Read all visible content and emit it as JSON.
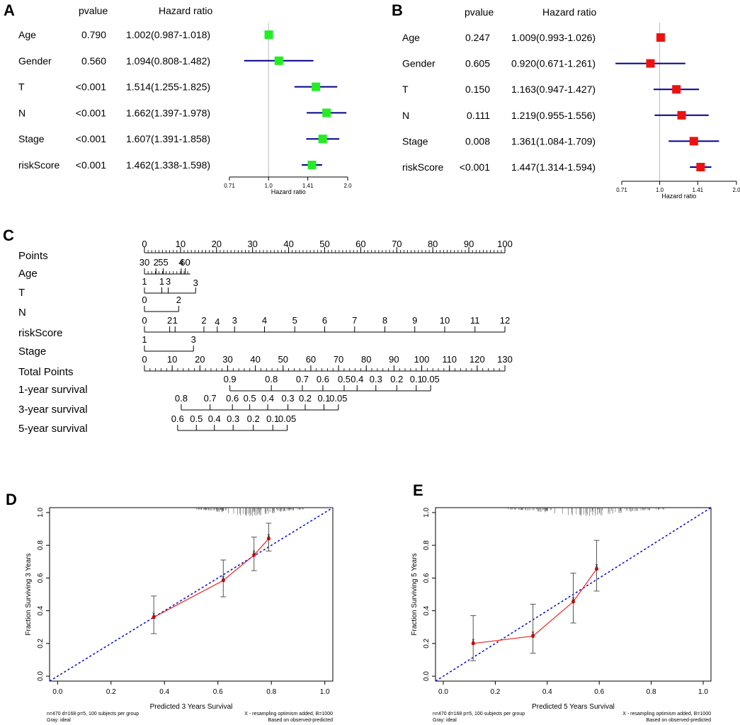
{
  "colors": {
    "panel_a_marker": "#22ee22",
    "panel_b_marker": "#ee1111",
    "ci_line": "#00008b",
    "ideal_line": "#1111dd",
    "observed_line": "#ee2222",
    "ref_line": "#bbbbbb"
  },
  "chart_data": [
    {
      "panel": "A",
      "type": "forest",
      "col_pvalue": "pvalue",
      "col_hr": "Hazard ratio",
      "xlabel": "Hazard ratio",
      "log_scale": true,
      "xlim": [
        0.71,
        2.0
      ],
      "ticks": [
        0.71,
        1.0,
        1.41,
        2.0
      ],
      "tick_labels": [
        "0.71",
        "1.0",
        "1.41",
        "2.0"
      ],
      "rows": [
        {
          "label": "Age",
          "p": "0.790",
          "hr_text": "1.002(0.987-1.018)",
          "hr": 1.002,
          "lo": 0.987,
          "hi": 1.018
        },
        {
          "label": "Gender",
          "p": "0.560",
          "hr_text": "1.094(0.808-1.482)",
          "hr": 1.094,
          "lo": 0.808,
          "hi": 1.482
        },
        {
          "label": "T",
          "p": "<0.001",
          "hr_text": "1.514(1.255-1.825)",
          "hr": 1.514,
          "lo": 1.255,
          "hi": 1.825
        },
        {
          "label": "N",
          "p": "<0.001",
          "hr_text": "1.662(1.397-1.978)",
          "hr": 1.662,
          "lo": 1.397,
          "hi": 1.978
        },
        {
          "label": "Stage",
          "p": "<0.001",
          "hr_text": "1.607(1.391-1.858)",
          "hr": 1.607,
          "lo": 1.391,
          "hi": 1.858
        },
        {
          "label": "riskScore",
          "p": "<0.001",
          "hr_text": "1.462(1.338-1.598)",
          "hr": 1.462,
          "lo": 1.338,
          "hi": 1.598
        }
      ]
    },
    {
      "panel": "B",
      "type": "forest",
      "col_pvalue": "pvalue",
      "col_hr": "Hazard ratio",
      "xlabel": "Hazard ratio",
      "log_scale": true,
      "xlim": [
        0.71,
        2.0
      ],
      "ticks": [
        0.71,
        1.0,
        1.41,
        2.0
      ],
      "tick_labels": [
        "0.71",
        "1.0",
        "1.41",
        "2.0"
      ],
      "rows": [
        {
          "label": "Age",
          "p": "0.247",
          "hr_text": "1.009(0.993-1.026)",
          "hr": 1.009,
          "lo": 0.993,
          "hi": 1.026
        },
        {
          "label": "Gender",
          "p": "0.605",
          "hr_text": "0.920(0.671-1.261)",
          "hr": 0.92,
          "lo": 0.671,
          "hi": 1.261
        },
        {
          "label": "T",
          "p": "0.150",
          "hr_text": "1.163(0.947-1.427)",
          "hr": 1.163,
          "lo": 0.947,
          "hi": 1.427
        },
        {
          "label": "N",
          "p": "0.111",
          "hr_text": "1.219(0.955-1.556)",
          "hr": 1.219,
          "lo": 0.955,
          "hi": 1.556
        },
        {
          "label": "Stage",
          "p": "0.008",
          "hr_text": "1.361(1.084-1.709)",
          "hr": 1.361,
          "lo": 1.084,
          "hi": 1.709
        },
        {
          "label": "riskScore",
          "p": "<0.001",
          "hr_text": "1.447(1.314-1.594)",
          "hr": 1.447,
          "lo": 1.314,
          "hi": 1.594
        }
      ]
    },
    {
      "panel": "C",
      "type": "nomogram",
      "rows": [
        {
          "label": "Points",
          "axis": [
            0,
            100
          ],
          "ticks": [
            {
              "v": 0,
              "t": "0"
            },
            {
              "v": 10,
              "t": "10"
            },
            {
              "v": 20,
              "t": "20"
            },
            {
              "v": 30,
              "t": "30"
            },
            {
              "v": 40,
              "t": "40"
            },
            {
              "v": 50,
              "t": "50"
            },
            {
              "v": 60,
              "t": "60"
            },
            {
              "v": 70,
              "t": "70"
            },
            {
              "v": 80,
              "t": "80"
            },
            {
              "v": 90,
              "t": "90"
            },
            {
              "v": 100,
              "t": "100"
            }
          ],
          "minor": 1,
          "labels_above": true
        },
        {
          "label": "Age",
          "axis": [
            0,
            12.7
          ],
          "ticks": [
            {
              "v": 0,
              "t": "30"
            },
            {
              "v": 3.2,
              "t": "2"
            },
            {
              "v": 5.2,
              "t": "55"
            },
            {
              "v": 10.2,
              "t": "4"
            },
            {
              "v": 11.3,
              "t": "60"
            }
          ],
          "minor": 1.0
        },
        {
          "label": "T",
          "ticks": [
            {
              "v": 0,
              "t": "1"
            },
            {
              "v": 4.8,
              "t": "1"
            },
            {
              "v": 6.6,
              "t": "3"
            },
            {
              "v": 14.2,
              "t": "3",
              "up": true
            }
          ]
        },
        {
          "label": "N",
          "ticks": [
            {
              "v": 0,
              "t": "0"
            },
            {
              "v": 9.5,
              "t": "2"
            }
          ]
        },
        {
          "label": "riskScore",
          "axis": [
            0,
            100
          ],
          "ticks": [
            {
              "v": 0,
              "t": "0"
            },
            {
              "v": 7,
              "t": "2"
            },
            {
              "v": 8.5,
              "t": "1"
            },
            {
              "v": 16.5,
              "t": "2"
            },
            {
              "v": 20.2,
              "t": "4",
              "up": true
            },
            {
              "v": 25,
              "t": "3"
            },
            {
              "v": 33.3,
              "t": "4"
            },
            {
              "v": 41.7,
              "t": "5"
            },
            {
              "v": 50,
              "t": "6"
            },
            {
              "v": 58.3,
              "t": "7"
            },
            {
              "v": 66.7,
              "t": "8"
            },
            {
              "v": 75,
              "t": "9"
            },
            {
              "v": 83.3,
              "t": "10"
            },
            {
              "v": 91.7,
              "t": "11"
            },
            {
              "v": 100,
              "t": "12"
            }
          ]
        },
        {
          "label": "Stage",
          "ticks": [
            {
              "v": 0,
              "t": "1"
            },
            {
              "v": 13.6,
              "t": "3"
            }
          ]
        },
        {
          "label": "Total Points",
          "axis": [
            0,
            130
          ],
          "scale": 130,
          "ticks": [
            {
              "v": 0,
              "t": "0"
            },
            {
              "v": 10,
              "t": "10"
            },
            {
              "v": 20,
              "t": "20"
            },
            {
              "v": 30,
              "t": "30"
            },
            {
              "v": 40,
              "t": "40"
            },
            {
              "v": 50,
              "t": "50"
            },
            {
              "v": 60,
              "t": "60"
            },
            {
              "v": 70,
              "t": "70"
            },
            {
              "v": 80,
              "t": "80"
            },
            {
              "v": 90,
              "t": "90"
            },
            {
              "v": 100,
              "t": "100"
            },
            {
              "v": 110,
              "t": "110"
            },
            {
              "v": 120,
              "t": "120"
            },
            {
              "v": 130,
              "t": "130"
            }
          ],
          "minor": 2
        },
        {
          "label": "1-year survival",
          "ticks": [
            {
              "v": 23.7,
              "t": "0.9"
            },
            {
              "v": 35.2,
              "t": "0.8"
            },
            {
              "v": 43.8,
              "t": "0.7"
            },
            {
              "v": 49.5,
              "t": "0.6"
            },
            {
              "v": 55.4,
              "t": "0.5"
            },
            {
              "v": 59,
              "t": "0.4"
            },
            {
              "v": 64.2,
              "t": "0.3"
            },
            {
              "v": 70,
              "t": "0.2"
            },
            {
              "v": 75.4,
              "t": "0.1"
            },
            {
              "v": 79.4,
              "t": "0.05"
            }
          ]
        },
        {
          "label": "3-year survival",
          "ticks": [
            {
              "v": 10.2,
              "t": "0.8"
            },
            {
              "v": 18.2,
              "t": "0.7"
            },
            {
              "v": 24.4,
              "t": "0.6"
            },
            {
              "v": 29.2,
              "t": "0.5"
            },
            {
              "v": 34.2,
              "t": "0.4"
            },
            {
              "v": 39.8,
              "t": "0.3"
            },
            {
              "v": 44.6,
              "t": "0.2"
            },
            {
              "v": 49.8,
              "t": "0.1"
            },
            {
              "v": 53.8,
              "t": "0.05"
            }
          ]
        },
        {
          "label": "5-year survival",
          "ticks": [
            {
              "v": 9.2,
              "t": "0.6"
            },
            {
              "v": 14.4,
              "t": "0.5"
            },
            {
              "v": 19.4,
              "t": "0.4"
            },
            {
              "v": 24.6,
              "t": "0.3"
            },
            {
              "v": 30.2,
              "t": "0.2"
            },
            {
              "v": 35.6,
              "t": "0.1"
            },
            {
              "v": 39.6,
              "t": "0.05"
            }
          ]
        }
      ]
    },
    {
      "panel": "D",
      "type": "calibration",
      "xlabel": "Predicted 3 Years Survival",
      "ylabel": "Fraction Surviving 3 Years",
      "xlim": [
        -0.03,
        1.03
      ],
      "ylim": [
        -0.03,
        1.03
      ],
      "xticks": [
        "0.0",
        "0.2",
        "0.4",
        "0.6",
        "0.8",
        "1.0"
      ],
      "yticks": [
        "0.0",
        "0.2",
        "0.4",
        "0.6",
        "0.8",
        "1.0"
      ],
      "points": [
        {
          "x": 0.36,
          "y": 0.36,
          "lo": 0.26,
          "hi": 0.49
        },
        {
          "x": 0.62,
          "y": 0.585,
          "lo": 0.485,
          "hi": 0.71
        },
        {
          "x": 0.735,
          "y": 0.74,
          "lo": 0.645,
          "hi": 0.85
        },
        {
          "x": 0.79,
          "y": 0.84,
          "lo": 0.765,
          "hi": 0.935
        }
      ],
      "footer_left_1": "n=470 d=168 p=5, 100 subjects per group",
      "footer_left_2": "Gray: ideal",
      "footer_right_1": "X - resampling optimism added, B=1000",
      "footer_right_2": "Based on observed-predicted"
    },
    {
      "panel": "E",
      "type": "calibration",
      "xlabel": "Predicted 5 Years Survival",
      "ylabel": "Fraction Surviving 5 Years",
      "xlim": [
        -0.03,
        1.03
      ],
      "ylim": [
        -0.03,
        1.03
      ],
      "xticks": [
        "0.0",
        "0.2",
        "0.4",
        "0.6",
        "0.8",
        "1.0"
      ],
      "yticks": [
        "0.0",
        "0.2",
        "0.4",
        "0.6",
        "0.8",
        "1.0"
      ],
      "points": [
        {
          "x": 0.115,
          "y": 0.2,
          "lo": 0.095,
          "hi": 0.37
        },
        {
          "x": 0.345,
          "y": 0.245,
          "lo": 0.14,
          "hi": 0.44
        },
        {
          "x": 0.5,
          "y": 0.455,
          "lo": 0.325,
          "hi": 0.63
        },
        {
          "x": 0.59,
          "y": 0.655,
          "lo": 0.52,
          "hi": 0.83
        }
      ],
      "footer_left_1": "n=470 d=168 p=5, 100 subjects per group",
      "footer_left_2": "Gray: ideal",
      "footer_right_1": "X - resampling optimism added, B=1000",
      "footer_right_2": "Based on observed-predicted"
    }
  ]
}
